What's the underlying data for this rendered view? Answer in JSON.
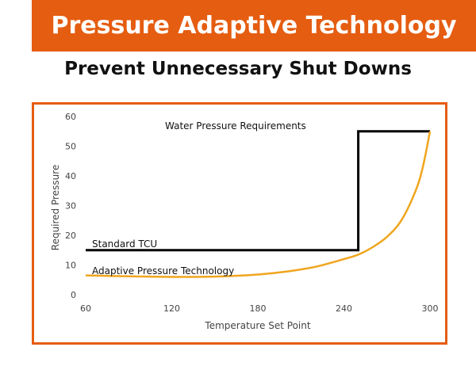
{
  "header": {
    "title": "Pressure Adaptive Technology",
    "subtitle": "Prevent Unnecessary Shut Downs"
  },
  "colors": {
    "brand_orange": "#e55d11",
    "standard_line": "#000000",
    "adaptive_line": "#f0a51e"
  },
  "chart_data": {
    "type": "line",
    "title": "Water Pressure Requirements",
    "xlabel": "Temperature Set Point",
    "ylabel": "Required Pressure",
    "xlim": [
      60,
      300
    ],
    "ylim": [
      0,
      60
    ],
    "x_ticks": [
      60,
      120,
      180,
      240,
      300
    ],
    "y_ticks": [
      0,
      10,
      20,
      30,
      40,
      50,
      60
    ],
    "grid": false,
    "series": [
      {
        "name": "Standard TCU",
        "color": "#000000",
        "points": [
          [
            60,
            15
          ],
          [
            250,
            15
          ],
          [
            250,
            55
          ],
          [
            300,
            55
          ]
        ]
      },
      {
        "name": "Adaptive Pressure Technology",
        "color": "#f0a51e",
        "points": [
          [
            60,
            6.5
          ],
          [
            90,
            6.2
          ],
          [
            120,
            6.0
          ],
          [
            150,
            6.1
          ],
          [
            180,
            6.8
          ],
          [
            200,
            7.8
          ],
          [
            220,
            9.4
          ],
          [
            240,
            12.0
          ],
          [
            250,
            13.5
          ],
          [
            260,
            16.0
          ],
          [
            270,
            19.5
          ],
          [
            280,
            25.0
          ],
          [
            290,
            35.0
          ],
          [
            295,
            43.0
          ],
          [
            300,
            55.0
          ]
        ]
      }
    ]
  }
}
